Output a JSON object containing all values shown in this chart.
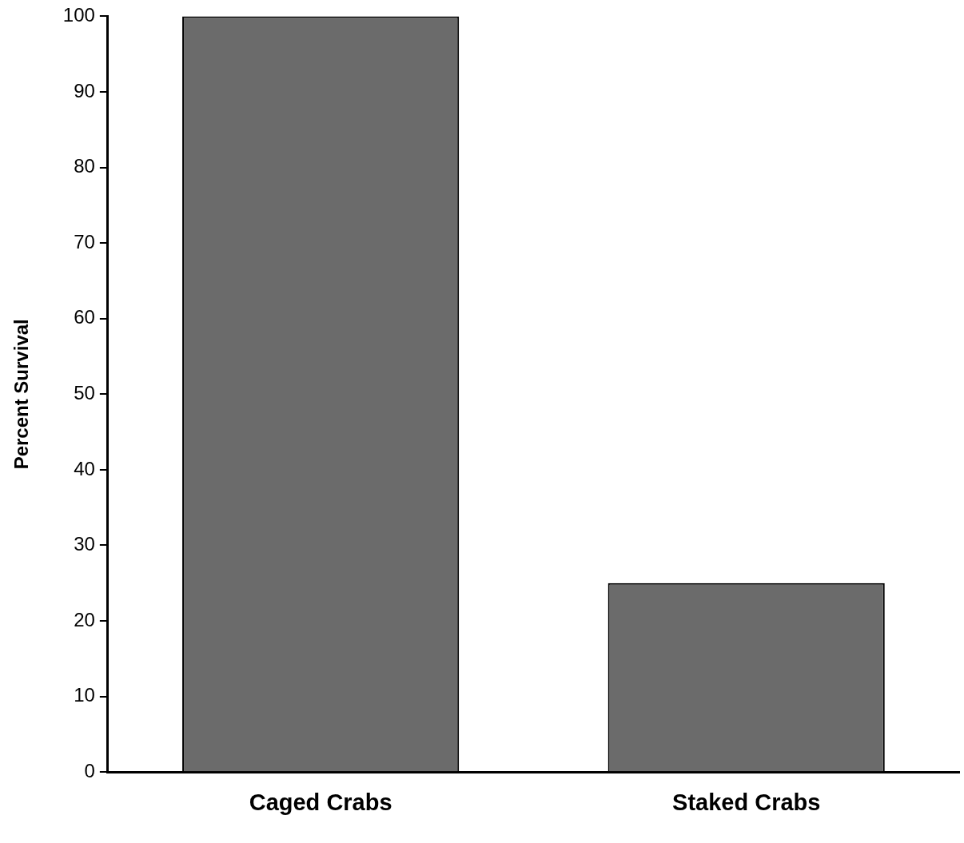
{
  "chart_data": {
    "type": "bar",
    "ylabel": "Percent Survival",
    "categories": [
      "Caged Crabs",
      "Staked Crabs"
    ],
    "values": [
      100,
      25
    ],
    "color": "#6b6b6b",
    "ylim": [
      0,
      100
    ],
    "yticks": [
      0,
      10,
      20,
      30,
      40,
      50,
      60,
      70,
      80,
      90,
      100
    ],
    "grid": false,
    "legend": false
  }
}
